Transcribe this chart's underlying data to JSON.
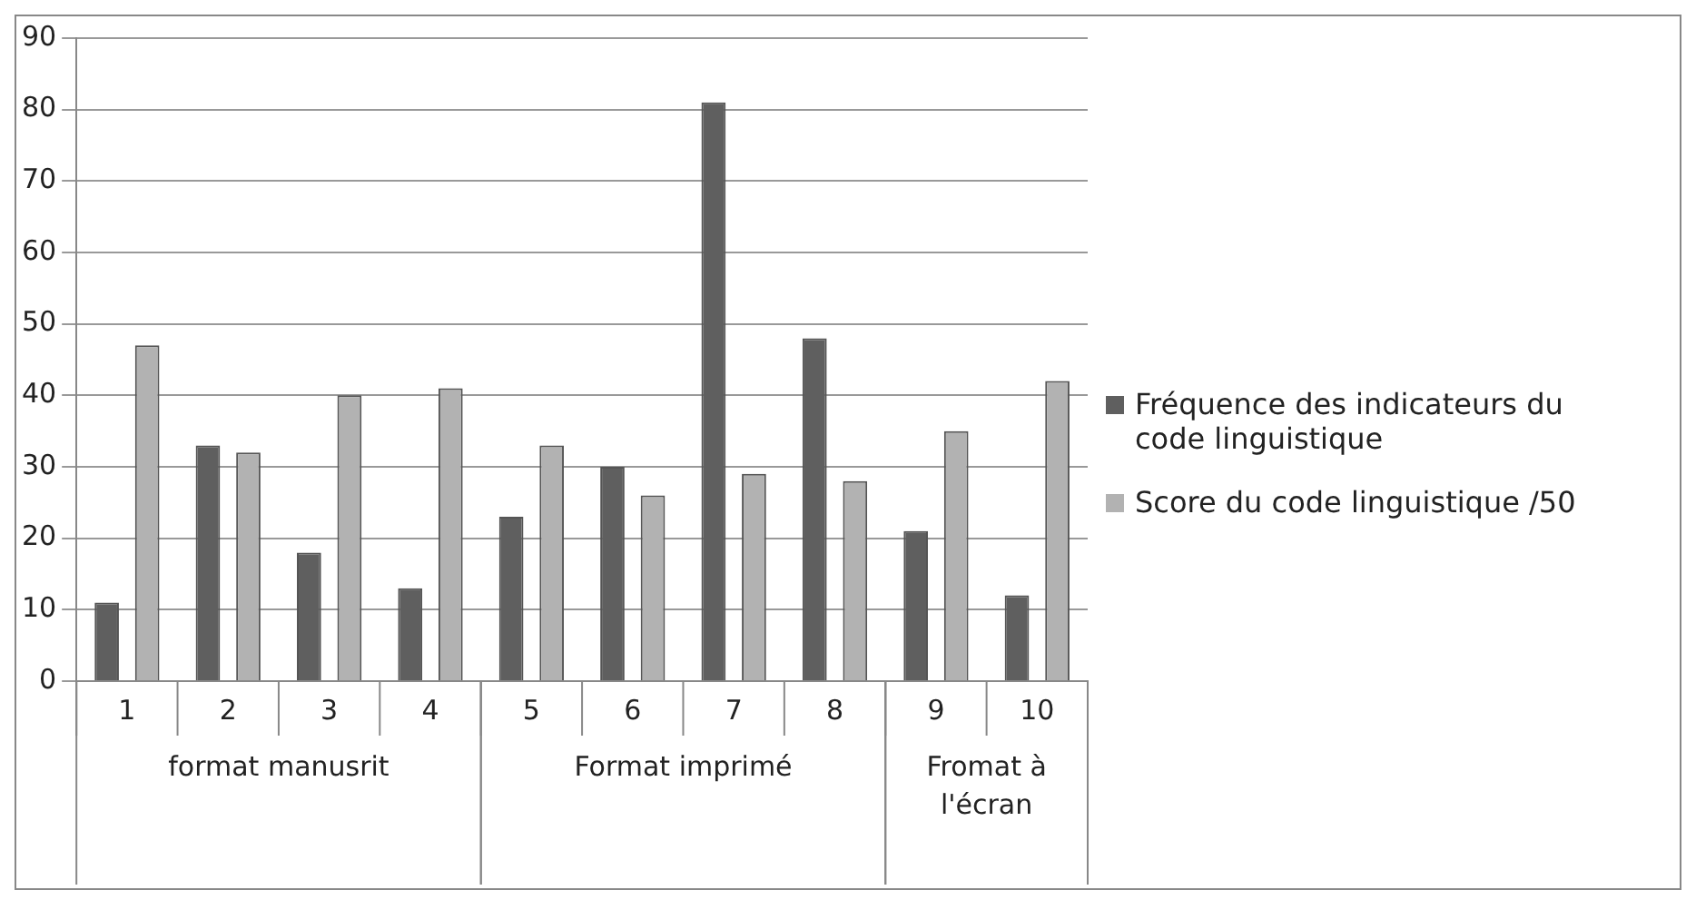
{
  "chart_data": {
    "type": "bar",
    "categories": [
      "1",
      "2",
      "3",
      "4",
      "5",
      "6",
      "7",
      "8",
      "9",
      "10"
    ],
    "series": [
      {
        "name": "Fréquence des indicateurs du code linguistique",
        "color": "#5f5f5f",
        "values": [
          11,
          33,
          18,
          13,
          23,
          30,
          81,
          48,
          21,
          12
        ]
      },
      {
        "name": "Score du code linguistique /50",
        "color": "#b2b2b2",
        "values": [
          47,
          32,
          40,
          41,
          33,
          26,
          29,
          28,
          35,
          42
        ]
      }
    ],
    "ylim": [
      0,
      90
    ],
    "yticks": [
      0,
      10,
      20,
      30,
      40,
      50,
      60,
      70,
      80,
      90
    ],
    "grid": "y",
    "legend": "right",
    "annotations": [
      "format manusrit",
      "Format imprimé",
      "Fromat à l'écran"
    ]
  }
}
